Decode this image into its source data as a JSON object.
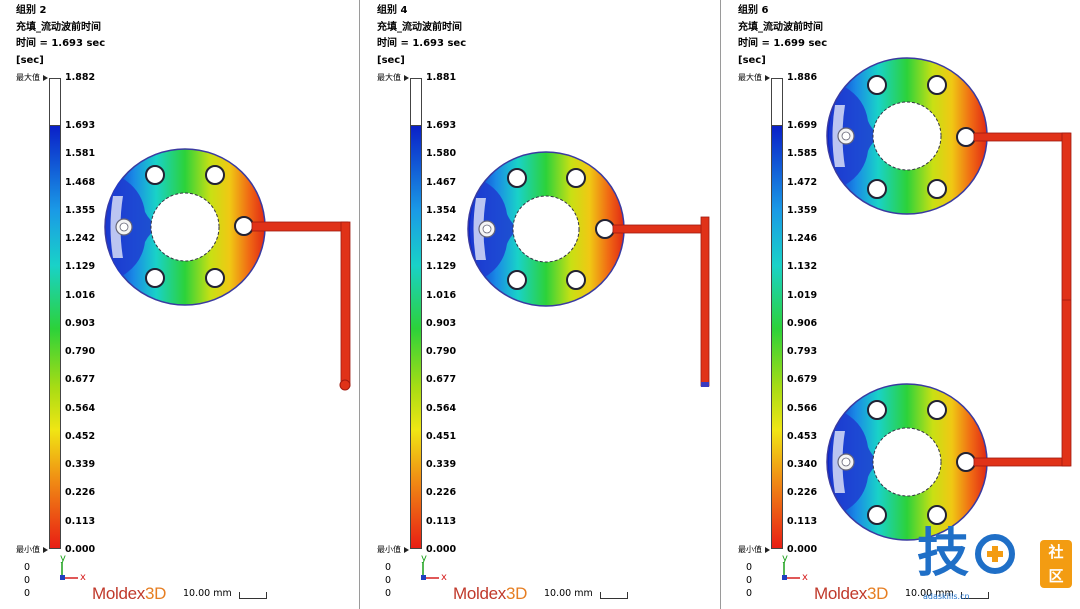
{
  "panels": [
    {
      "group": "组别 2",
      "result_name": "充填_流动波前时间",
      "time_line": "时间 = 1.693 sec",
      "unit": "[sec]",
      "max_label": "最大值",
      "min_label": "最小值",
      "max_value": "1.882",
      "ticks": [
        "1.693",
        "1.581",
        "1.468",
        "1.355",
        "1.242",
        "1.129",
        "1.016",
        "0.903",
        "0.790",
        "0.677",
        "0.564",
        "0.452",
        "0.339",
        "0.226",
        "0.113",
        "0.000"
      ],
      "origin": [
        "0",
        "0",
        "0"
      ],
      "axis_y": "y",
      "axis_x": "x",
      "scale_text": "10.00 mm"
    },
    {
      "group": "组别 4",
      "result_name": "充填_流动波前时间",
      "time_line": "时间 = 1.693 sec",
      "unit": "[sec]",
      "max_label": "最大值",
      "min_label": "最小值",
      "max_value": "1.881",
      "ticks": [
        "1.693",
        "1.580",
        "1.467",
        "1.354",
        "1.242",
        "1.129",
        "1.016",
        "0.903",
        "0.790",
        "0.677",
        "0.564",
        "0.451",
        "0.339",
        "0.226",
        "0.113",
        "0.000"
      ],
      "origin": [
        "0",
        "0",
        "0"
      ],
      "axis_y": "y",
      "axis_x": "x",
      "scale_text": "10.00 mm"
    },
    {
      "group": "组别 6",
      "result_name": "充填_流动波前时间",
      "time_line": "时间 = 1.699 sec",
      "unit": "[sec]",
      "max_label": "最大值",
      "min_label": "最小值",
      "max_value": "1.886",
      "ticks": [
        "1.699",
        "1.585",
        "1.472",
        "1.359",
        "1.246",
        "1.132",
        "1.019",
        "0.906",
        "0.793",
        "0.679",
        "0.566",
        "0.453",
        "0.340",
        "0.226",
        "0.113",
        "0.000"
      ],
      "origin": [
        "0",
        "0",
        "0"
      ],
      "axis_y": "y",
      "axis_x": "x",
      "scale_text": "10.00 mm"
    }
  ],
  "logo": {
    "main": "Moldex",
    "accent": "3D"
  },
  "watermark": {
    "char": "技",
    "badge_top": "社",
    "badge_bottom": "区",
    "url": "adaskills.cn"
  },
  "colors": {
    "brand_red": "#c0392b",
    "brand_orange": "#e67e22",
    "divider": "#9a9a9a"
  }
}
